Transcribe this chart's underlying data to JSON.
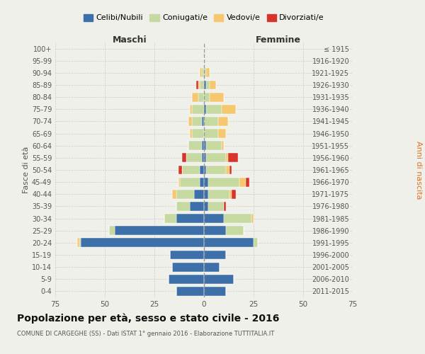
{
  "age_groups": [
    "0-4",
    "5-9",
    "10-14",
    "15-19",
    "20-24",
    "25-29",
    "30-34",
    "35-39",
    "40-44",
    "45-49",
    "50-54",
    "55-59",
    "60-64",
    "65-69",
    "70-74",
    "75-79",
    "80-84",
    "85-89",
    "90-94",
    "95-99",
    "100+"
  ],
  "birth_years": [
    "2011-2015",
    "2006-2010",
    "2001-2005",
    "1996-2000",
    "1991-1995",
    "1986-1990",
    "1981-1985",
    "1976-1980",
    "1971-1975",
    "1966-1970",
    "1961-1965",
    "1956-1960",
    "1951-1955",
    "1946-1950",
    "1941-1945",
    "1936-1940",
    "1931-1935",
    "1926-1930",
    "1921-1925",
    "1916-1920",
    "≤ 1915"
  ],
  "maschi": {
    "celibi": [
      14,
      18,
      16,
      17,
      62,
      45,
      14,
      7,
      5,
      2,
      2,
      1,
      1,
      0,
      1,
      0,
      0,
      0,
      0,
      0,
      0
    ],
    "coniugati": [
      0,
      0,
      0,
      0,
      1,
      3,
      6,
      7,
      9,
      10,
      9,
      8,
      7,
      6,
      5,
      6,
      3,
      2,
      1,
      0,
      0
    ],
    "vedovi": [
      0,
      0,
      0,
      0,
      1,
      0,
      0,
      0,
      2,
      1,
      0,
      0,
      0,
      1,
      2,
      1,
      3,
      1,
      1,
      0,
      0
    ],
    "divorziati": [
      0,
      0,
      0,
      0,
      0,
      0,
      0,
      0,
      0,
      0,
      2,
      2,
      0,
      0,
      0,
      0,
      0,
      1,
      0,
      0,
      0
    ]
  },
  "femmine": {
    "nubili": [
      11,
      15,
      8,
      11,
      25,
      11,
      10,
      2,
      2,
      2,
      1,
      1,
      1,
      0,
      0,
      1,
      0,
      1,
      0,
      0,
      0
    ],
    "coniugate": [
      0,
      0,
      0,
      0,
      2,
      9,
      14,
      8,
      11,
      16,
      10,
      10,
      8,
      7,
      7,
      8,
      3,
      2,
      1,
      0,
      0
    ],
    "vedove": [
      0,
      0,
      0,
      0,
      0,
      0,
      1,
      0,
      1,
      3,
      2,
      1,
      1,
      4,
      5,
      7,
      7,
      3,
      2,
      0,
      0
    ],
    "divorziate": [
      0,
      0,
      0,
      0,
      0,
      0,
      0,
      1,
      2,
      2,
      1,
      5,
      0,
      0,
      0,
      0,
      0,
      0,
      0,
      0,
      0
    ]
  },
  "colors": {
    "celibi": "#3d6fa8",
    "coniugati": "#c5d9a0",
    "vedovi": "#f5c76e",
    "divorziati": "#d9342b"
  },
  "xlim": 75,
  "title": "Popolazione per età, sesso e stato civile - 2016",
  "subtitle": "COMUNE DI CARGEGHE (SS) - Dati ISTAT 1° gennaio 2016 - Elaborazione TUTTITALIA.IT",
  "ylabel": "Fasce di età",
  "ylabel_right": "Anni di nascita",
  "xlabel_left": "Maschi",
  "xlabel_right": "Femmine",
  "bg_color": "#f0f0eb",
  "grid_color": "#cccccc"
}
